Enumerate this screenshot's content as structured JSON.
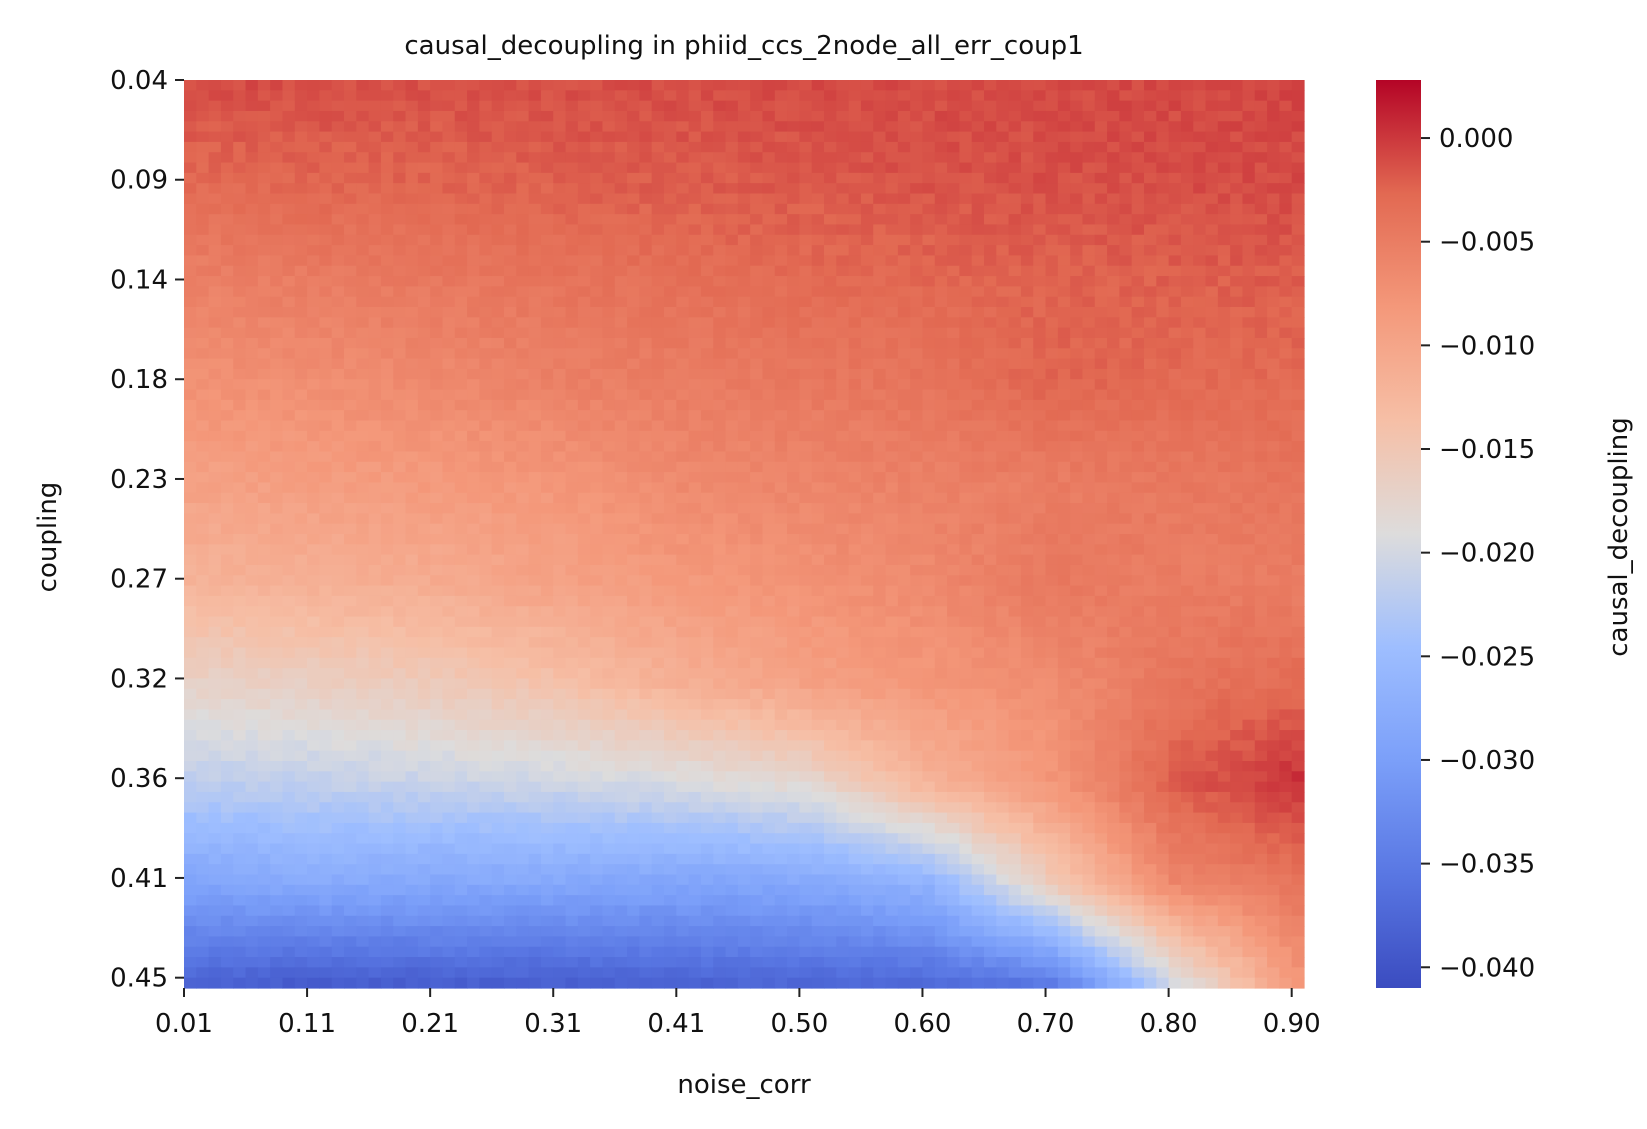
{
  "chart_data": {
    "type": "heatmap",
    "title": "causal_decoupling in phiid_ccs_2node_all_err_coup1",
    "xlabel": "noise_corr",
    "ylabel": "coupling",
    "colorbar_label": "causal_decoupling",
    "colormap": "coolwarm",
    "grid": false,
    "x_tick_labels": [
      "0.01",
      "0.11",
      "0.21",
      "0.31",
      "0.41",
      "0.50",
      "0.60",
      "0.70",
      "0.80",
      "0.90"
    ],
    "y_tick_labels": [
      "0.04",
      "0.09",
      "0.14",
      "0.18",
      "0.23",
      "0.27",
      "0.32",
      "0.36",
      "0.41",
      "0.45"
    ],
    "x_range": [
      0.01,
      0.91
    ],
    "y_range": [
      0.04,
      0.45
    ],
    "color_range": [
      -0.041,
      0.0028
    ],
    "colorbar_ticks": [
      "0.000",
      "−0.005",
      "−0.010",
      "−0.015",
      "−0.020",
      "−0.025",
      "−0.030",
      "−0.035",
      "−0.040"
    ],
    "colorbar_tick_values": [
      0.0,
      -0.005,
      -0.01,
      -0.015,
      -0.02,
      -0.025,
      -0.03,
      -0.035,
      -0.04
    ],
    "grid_size": {
      "cols": 91,
      "rows": 88
    },
    "value_summary": {
      "coupling_rows": [
        0.04,
        0.09,
        0.14,
        0.18,
        0.23,
        0.27,
        0.32,
        0.36,
        0.41,
        0.45
      ],
      "noise_corr_cols": [
        0.01,
        0.11,
        0.21,
        0.31,
        0.41,
        0.5,
        0.6,
        0.7,
        0.8,
        0.9
      ],
      "values": [
        [
          -0.001,
          -0.0012,
          -0.0013,
          -0.0012,
          -0.0011,
          -0.001,
          -0.001,
          -0.001,
          -0.0009,
          -0.0008
        ],
        [
          -0.003,
          -0.0025,
          -0.0025,
          -0.0022,
          -0.002,
          -0.0018,
          -0.0015,
          -0.0013,
          -0.0012,
          -0.001
        ],
        [
          -0.0055,
          -0.005,
          -0.0045,
          -0.004,
          -0.0035,
          -0.003,
          -0.0027,
          -0.0025,
          -0.0022,
          -0.002
        ],
        [
          -0.0075,
          -0.007,
          -0.0065,
          -0.0055,
          -0.005,
          -0.0045,
          -0.004,
          -0.0025,
          -0.003,
          -0.003
        ],
        [
          -0.0095,
          -0.009,
          -0.0085,
          -0.008,
          -0.0065,
          -0.006,
          -0.0055,
          -0.005,
          -0.0045,
          -0.004
        ],
        [
          -0.012,
          -0.0115,
          -0.011,
          -0.0095,
          -0.0085,
          -0.0075,
          -0.0065,
          -0.0045,
          -0.005,
          -0.005
        ],
        [
          -0.017,
          -0.0165,
          -0.0155,
          -0.014,
          -0.0115,
          -0.0095,
          -0.008,
          -0.007,
          -0.004,
          -0.003
        ],
        [
          -0.022,
          -0.0215,
          -0.021,
          -0.0205,
          -0.0195,
          -0.018,
          -0.012,
          -0.008,
          -0.002,
          0.0005
        ],
        [
          -0.029,
          -0.028,
          -0.0285,
          -0.0285,
          -0.029,
          -0.0285,
          -0.0265,
          -0.0155,
          -0.006,
          -0.004
        ],
        [
          -0.038,
          -0.039,
          -0.0385,
          -0.0385,
          -0.038,
          -0.0375,
          -0.037,
          -0.035,
          -0.02,
          -0.008
        ]
      ]
    }
  }
}
